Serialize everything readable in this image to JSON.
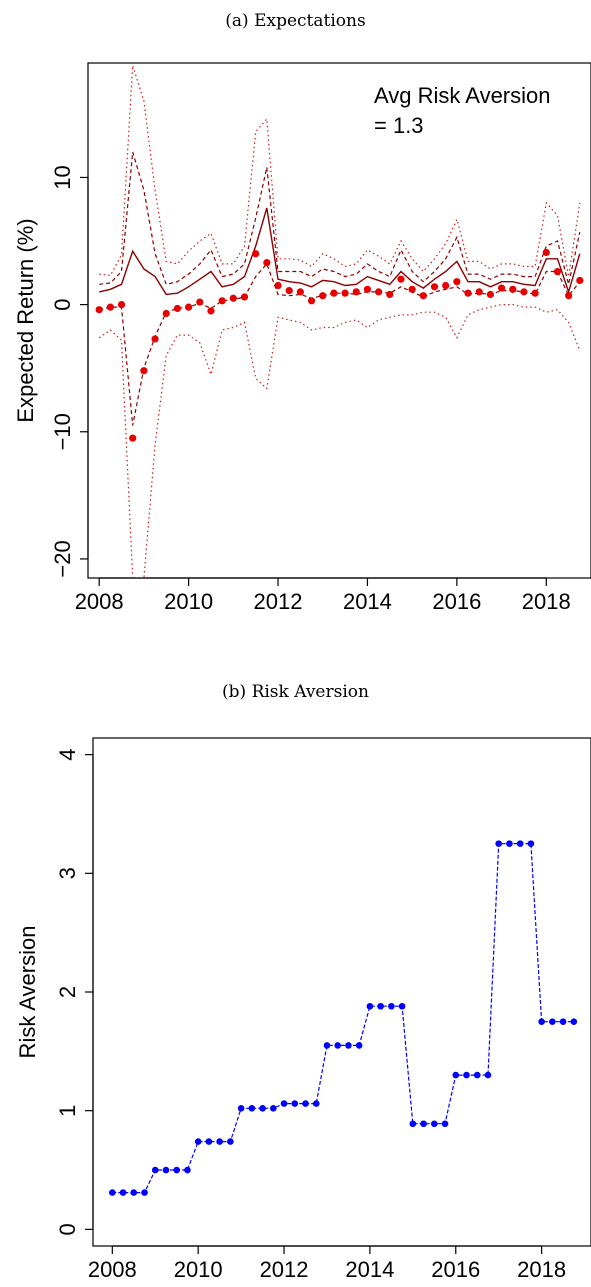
{
  "chart_data": [
    {
      "type": "line",
      "title": "(a) Expectations",
      "xlabel": "",
      "ylabel": "Expected Return (%)",
      "xlim": [
        2007.75,
        2019.0
      ],
      "ylim": [
        -21.5,
        19.0
      ],
      "x_ticks": [
        2008,
        2010,
        2012,
        2014,
        2016,
        2018
      ],
      "y_ticks": [
        -20,
        -10,
        0,
        10
      ],
      "annotation": [
        "Avg Risk Aversion",
        "= 1.3"
      ],
      "colors": {
        "dots": "#e60000",
        "line": "#8b0000",
        "dotted": "#d11a1a"
      },
      "x": [
        2008.0,
        2008.25,
        2008.5,
        2008.75,
        2009.0,
        2009.25,
        2009.5,
        2009.75,
        2010.0,
        2010.25,
        2010.5,
        2010.75,
        2011.0,
        2011.25,
        2011.5,
        2011.75,
        2012.0,
        2012.25,
        2012.5,
        2012.75,
        2013.0,
        2013.25,
        2013.5,
        2013.75,
        2014.0,
        2014.25,
        2014.5,
        2014.75,
        2015.0,
        2015.25,
        2015.5,
        2015.75,
        2016.0,
        2016.25,
        2016.5,
        2016.75,
        2017.0,
        2017.25,
        2017.5,
        2017.75,
        2018.0,
        2018.25,
        2018.5,
        2018.75
      ],
      "series": [
        {
          "style": "dots",
          "values": [
            -0.4,
            -0.2,
            0.0,
            -10.5,
            -5.2,
            -2.7,
            -0.7,
            -0.3,
            -0.2,
            0.2,
            -0.5,
            0.3,
            0.5,
            0.6,
            4.0,
            3.3,
            1.5,
            1.1,
            1.0,
            0.3,
            0.7,
            0.9,
            0.9,
            1.0,
            1.2,
            1.0,
            0.8,
            2.0,
            1.2,
            0.7,
            1.4,
            1.5,
            1.8,
            0.9,
            1.0,
            0.8,
            1.3,
            1.2,
            1.0,
            0.9,
            4.1,
            2.6,
            0.7,
            1.9
          ]
        },
        {
          "style": "solid",
          "values": [
            1.0,
            1.2,
            1.6,
            4.2,
            2.8,
            2.2,
            0.8,
            0.9,
            1.4,
            2.0,
            2.6,
            1.4,
            1.6,
            2.2,
            4.6,
            7.6,
            2.0,
            1.8,
            1.7,
            1.4,
            1.9,
            1.8,
            1.5,
            1.6,
            2.2,
            1.9,
            1.6,
            2.6,
            1.8,
            1.3,
            2.0,
            2.6,
            3.4,
            1.8,
            1.8,
            1.4,
            1.8,
            1.8,
            1.6,
            1.5,
            3.6,
            3.6,
            1.0,
            4.0
          ]
        },
        {
          "style": "dashed",
          "values": [
            1.6,
            1.7,
            2.6,
            12.0,
            9.0,
            4.0,
            1.6,
            1.8,
            2.4,
            3.2,
            4.3,
            2.2,
            2.4,
            3.2,
            6.8,
            10.8,
            2.6,
            2.6,
            2.6,
            2.2,
            2.8,
            2.6,
            2.2,
            2.4,
            3.2,
            2.6,
            2.2,
            4.3,
            2.6,
            1.8,
            2.6,
            3.6,
            5.3,
            2.4,
            2.4,
            2.0,
            2.4,
            2.4,
            2.2,
            2.2,
            4.6,
            5.0,
            1.6,
            5.7
          ]
        },
        {
          "style": "dotted",
          "values": [
            2.4,
            2.3,
            3.9,
            18.8,
            16.0,
            9.0,
            3.4,
            3.2,
            4.2,
            5.0,
            5.6,
            3.2,
            3.2,
            4.6,
            13.6,
            14.6,
            3.6,
            3.6,
            3.5,
            3.0,
            4.0,
            3.6,
            3.0,
            3.2,
            4.3,
            3.8,
            3.2,
            5.0,
            3.6,
            2.6,
            3.6,
            4.8,
            6.7,
            3.4,
            3.4,
            2.8,
            3.2,
            3.2,
            3.0,
            3.0,
            8.0,
            7.0,
            2.2,
            8.0
          ]
        },
        {
          "style": "dashed",
          "values": [
            -0.4,
            -0.2,
            -0.2,
            -9.5,
            -5.0,
            -2.5,
            -0.6,
            -0.3,
            -0.2,
            0.1,
            -0.3,
            0.3,
            0.4,
            0.6,
            2.2,
            3.2,
            0.8,
            0.7,
            0.8,
            0.5,
            0.7,
            0.9,
            0.9,
            0.8,
            1.0,
            1.0,
            0.9,
            1.4,
            1.0,
            0.6,
            1.0,
            1.2,
            1.4,
            0.8,
            0.9,
            0.8,
            1.1,
            1.1,
            1.0,
            0.8,
            2.6,
            2.6,
            0.7,
            1.8
          ]
        },
        {
          "style": "dotted",
          "values": [
            -2.6,
            -2.0,
            -2.8,
            -21.5,
            -21.5,
            -11.0,
            -4.0,
            -2.4,
            -2.4,
            -3.0,
            -5.5,
            -2.0,
            -1.8,
            -1.4,
            -5.8,
            -6.6,
            -1.0,
            -1.2,
            -1.4,
            -2.0,
            -1.8,
            -1.8,
            -1.4,
            -1.2,
            -1.8,
            -1.2,
            -1.0,
            -0.8,
            -0.8,
            -0.6,
            -0.6,
            -1.0,
            -2.6,
            -0.8,
            -0.4,
            -0.2,
            0.0,
            0.0,
            -0.2,
            -0.2,
            -0.6,
            -0.4,
            -1.4,
            -3.6
          ]
        }
      ]
    },
    {
      "type": "line",
      "title": "(b) Risk Aversion",
      "xlabel": "",
      "ylabel": "Risk Aversion",
      "xlim": [
        2007.55,
        2019.15
      ],
      "ylim": [
        -0.14,
        4.14
      ],
      "x_ticks": [
        2008,
        2010,
        2012,
        2014,
        2016,
        2018
      ],
      "y_ticks": [
        0,
        1,
        2,
        3,
        4
      ],
      "colors": {
        "line": "#0000ff"
      },
      "x": [
        2008.0,
        2008.25,
        2008.5,
        2008.75,
        2009.0,
        2009.25,
        2009.5,
        2009.75,
        2010.0,
        2010.25,
        2010.5,
        2010.75,
        2011.0,
        2011.25,
        2011.5,
        2011.75,
        2012.0,
        2012.25,
        2012.5,
        2012.75,
        2013.0,
        2013.25,
        2013.5,
        2013.75,
        2014.0,
        2014.25,
        2014.5,
        2014.75,
        2015.0,
        2015.25,
        2015.5,
        2015.75,
        2016.0,
        2016.25,
        2016.5,
        2016.75,
        2017.0,
        2017.25,
        2017.5,
        2017.75,
        2018.0,
        2018.25,
        2018.5,
        2018.75
      ],
      "values": [
        0.31,
        0.31,
        0.31,
        0.31,
        0.5,
        0.5,
        0.5,
        0.5,
        0.74,
        0.74,
        0.74,
        0.74,
        1.02,
        1.02,
        1.02,
        1.02,
        1.06,
        1.06,
        1.06,
        1.06,
        1.55,
        1.55,
        1.55,
        1.55,
        1.88,
        1.88,
        1.88,
        1.88,
        0.89,
        0.89,
        0.89,
        0.89,
        1.3,
        1.3,
        1.3,
        1.3,
        3.25,
        3.25,
        3.25,
        3.25,
        1.75,
        1.75,
        1.75,
        1.75
      ]
    }
  ]
}
